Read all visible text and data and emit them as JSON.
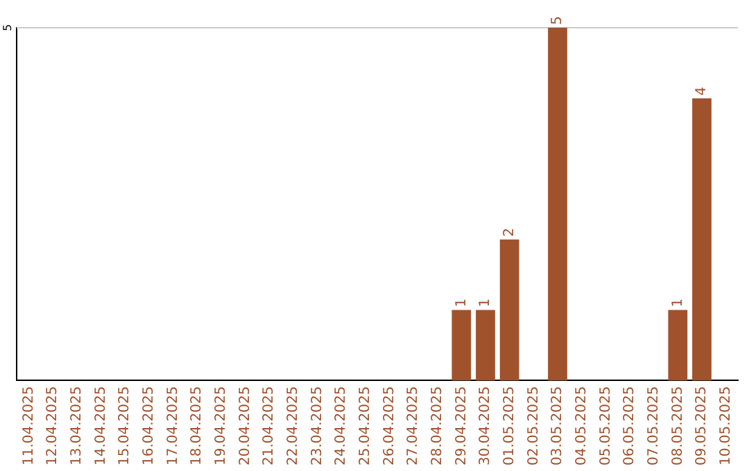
{
  "chart_data": {
    "type": "bar",
    "categories": [
      "11.04.2025",
      "12.04.2025",
      "13.04.2025",
      "14.04.2025",
      "15.04.2025",
      "16.04.2025",
      "17.04.2025",
      "18.04.2025",
      "19.04.2025",
      "20.04.2025",
      "21.04.2025",
      "22.04.2025",
      "23.04.2025",
      "24.04.2025",
      "25.04.2025",
      "26.04.2025",
      "27.04.2025",
      "28.04.2025",
      "29.04.2025",
      "30.04.2025",
      "01.05.2025",
      "02.05.2025",
      "03.05.2025",
      "04.05.2025",
      "05.05.2025",
      "06.05.2025",
      "07.05.2025",
      "08.05.2025",
      "09.05.2025",
      "10.05.2025"
    ],
    "values": [
      null,
      null,
      null,
      null,
      null,
      null,
      null,
      null,
      null,
      null,
      null,
      null,
      null,
      null,
      null,
      null,
      null,
      null,
      1,
      1,
      2,
      null,
      5,
      null,
      null,
      null,
      null,
      1,
      4,
      null
    ],
    "value_labels": [
      null,
      null,
      null,
      null,
      null,
      null,
      null,
      null,
      null,
      null,
      null,
      null,
      null,
      null,
      null,
      null,
      null,
      null,
      "1",
      "1",
      "2",
      null,
      "5",
      null,
      null,
      null,
      null,
      "1",
      "4",
      null
    ],
    "color": "#a0522d",
    "ylim": [
      0,
      5
    ],
    "ref_lines": [
      {
        "axis": "y",
        "value": 5,
        "label": "5",
        "color": "#cccccc"
      }
    ],
    "legend": false
  }
}
